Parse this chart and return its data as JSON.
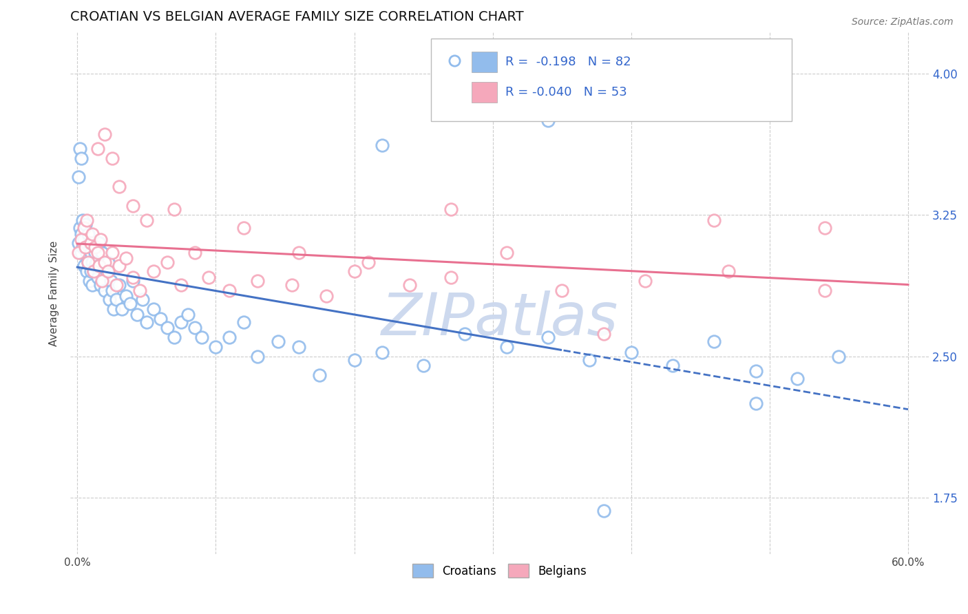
{
  "title": "CROATIAN VS BELGIAN AVERAGE FAMILY SIZE CORRELATION CHART",
  "source": "Source: ZipAtlas.com",
  "ylabel": "Average Family Size",
  "yticks": [
    1.75,
    2.5,
    3.25,
    4.0
  ],
  "background_color": "#ffffff",
  "grid_color": "#cccccc",
  "croatian_color": "#92bcec",
  "belgian_color": "#f5a8bb",
  "trend_croatian_color": "#4472c4",
  "trend_belgian_color": "#e87090",
  "watermark_color": "#cdd9ee",
  "legend_text_color": "#3366cc",
  "R_croatian": -0.198,
  "N_croatian": 82,
  "R_belgian": -0.04,
  "N_belgian": 53,
  "cr_x": [
    0.001,
    0.002,
    0.003,
    0.003,
    0.004,
    0.004,
    0.005,
    0.005,
    0.006,
    0.006,
    0.007,
    0.007,
    0.008,
    0.008,
    0.009,
    0.009,
    0.01,
    0.01,
    0.011,
    0.011,
    0.012,
    0.012,
    0.013,
    0.013,
    0.014,
    0.015,
    0.016,
    0.016,
    0.017,
    0.018,
    0.019,
    0.02,
    0.021,
    0.022,
    0.023,
    0.024,
    0.025,
    0.026,
    0.028,
    0.03,
    0.032,
    0.035,
    0.038,
    0.04,
    0.043,
    0.047,
    0.05,
    0.055,
    0.06,
    0.065,
    0.07,
    0.075,
    0.08,
    0.085,
    0.09,
    0.1,
    0.11,
    0.12,
    0.13,
    0.145,
    0.16,
    0.175,
    0.2,
    0.22,
    0.25,
    0.28,
    0.31,
    0.34,
    0.37,
    0.4,
    0.43,
    0.46,
    0.49,
    0.52,
    0.55,
    0.001,
    0.002,
    0.003,
    0.22,
    0.34,
    0.38,
    0.49
  ],
  "cr_y": [
    3.1,
    3.18,
    3.15,
    3.05,
    3.22,
    3.08,
    3.12,
    2.98,
    3.08,
    3.2,
    3.05,
    2.95,
    3.15,
    3.0,
    3.1,
    2.9,
    3.05,
    2.95,
    3.0,
    2.88,
    2.95,
    3.1,
    2.98,
    3.05,
    3.0,
    2.92,
    2.98,
    3.1,
    2.88,
    3.05,
    2.9,
    2.85,
    2.95,
    3.0,
    2.8,
    2.9,
    2.85,
    2.75,
    2.8,
    2.88,
    2.75,
    2.82,
    2.78,
    2.9,
    2.72,
    2.8,
    2.68,
    2.75,
    2.7,
    2.65,
    2.6,
    2.68,
    2.72,
    2.65,
    2.6,
    2.55,
    2.6,
    2.68,
    2.5,
    2.58,
    2.55,
    2.4,
    2.48,
    2.52,
    2.45,
    2.62,
    2.55,
    2.6,
    2.48,
    2.52,
    2.45,
    2.58,
    2.42,
    2.38,
    2.5,
    3.45,
    3.6,
    3.55,
    3.62,
    3.75,
    1.68,
    2.25
  ],
  "be_x": [
    0.001,
    0.003,
    0.005,
    0.006,
    0.007,
    0.008,
    0.01,
    0.011,
    0.012,
    0.013,
    0.015,
    0.016,
    0.017,
    0.018,
    0.02,
    0.022,
    0.025,
    0.028,
    0.03,
    0.035,
    0.04,
    0.045,
    0.055,
    0.065,
    0.075,
    0.085,
    0.095,
    0.11,
    0.13,
    0.155,
    0.18,
    0.21,
    0.24,
    0.27,
    0.31,
    0.35,
    0.41,
    0.47,
    0.54,
    0.015,
    0.02,
    0.025,
    0.03,
    0.04,
    0.05,
    0.07,
    0.12,
    0.16,
    0.2,
    0.46,
    0.38,
    0.27,
    0.54
  ],
  "be_y": [
    3.05,
    3.12,
    3.18,
    3.08,
    3.22,
    3.0,
    3.1,
    3.15,
    2.95,
    3.08,
    3.05,
    2.98,
    3.12,
    2.9,
    3.0,
    2.95,
    3.05,
    2.88,
    2.98,
    3.02,
    2.92,
    2.85,
    2.95,
    3.0,
    2.88,
    3.05,
    2.92,
    2.85,
    2.9,
    2.88,
    2.82,
    3.0,
    2.88,
    2.92,
    3.05,
    2.85,
    2.9,
    2.95,
    2.85,
    3.6,
    3.68,
    3.55,
    3.4,
    3.3,
    3.22,
    3.28,
    3.18,
    3.05,
    2.95,
    3.22,
    2.62,
    3.28,
    3.18
  ]
}
